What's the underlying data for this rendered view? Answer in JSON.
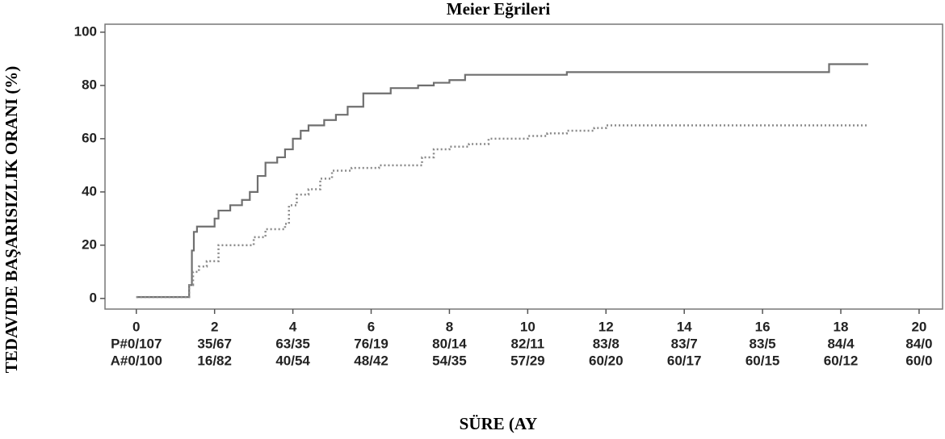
{
  "chart_data": {
    "type": "line",
    "title": "Meier Eğrileri",
    "y_label": "TEDAVIDE BAŞARISIZLIK ORANI (%)",
    "x_label": "SÜRE (AY",
    "xlim": [
      -0.8,
      20.6
    ],
    "ylim": [
      -4,
      103
    ],
    "xticks": [
      0,
      2,
      4,
      6,
      8,
      10,
      12,
      14,
      16,
      18,
      20
    ],
    "yticks": [
      0,
      20,
      40,
      60,
      80,
      100
    ],
    "series": [
      {
        "color": "#6f6f6f",
        "style": "solid",
        "x": [
          0,
          1.35,
          1.35,
          1.42,
          1.42,
          1.47,
          1.47,
          1.55,
          1.55,
          2.0,
          2.0,
          2.1,
          2.1,
          2.4,
          2.4,
          2.7,
          2.7,
          2.9,
          2.9,
          3.1,
          3.1,
          3.3,
          3.3,
          3.6,
          3.6,
          3.8,
          3.8,
          4.0,
          4.0,
          4.2,
          4.2,
          4.4,
          4.4,
          4.8,
          4.8,
          5.1,
          5.1,
          5.4,
          5.4,
          5.8,
          5.8,
          6.5,
          6.5,
          7.2,
          7.2,
          7.6,
          7.6,
          8.0,
          8.0,
          8.4,
          8.4,
          11.0,
          11.0,
          17.7,
          17.7,
          18.7
        ],
        "values": [
          0.5,
          0.5,
          5,
          5,
          18,
          18,
          25,
          25,
          27,
          27,
          30,
          30,
          33,
          33,
          35,
          35,
          37,
          37,
          40,
          40,
          46,
          46,
          51,
          51,
          53,
          53,
          56,
          56,
          60,
          60,
          63,
          63,
          65,
          65,
          67,
          67,
          69,
          69,
          72,
          72,
          77,
          77,
          79,
          79,
          80,
          80,
          81,
          81,
          82,
          82,
          84,
          84,
          85,
          85,
          88,
          88
        ]
      },
      {
        "color": "#8a8a8a",
        "style": "dotted",
        "x": [
          0,
          1.35,
          1.35,
          1.45,
          1.45,
          1.6,
          1.6,
          1.8,
          1.8,
          2.1,
          2.1,
          3.0,
          3.0,
          3.3,
          3.3,
          3.8,
          3.8,
          3.9,
          3.9,
          4.1,
          4.1,
          4.4,
          4.4,
          4.7,
          4.7,
          5.0,
          5.0,
          5.5,
          5.5,
          6.2,
          6.2,
          7.3,
          7.3,
          7.6,
          7.6,
          8.0,
          8.0,
          8.5,
          8.5,
          9.0,
          9.0,
          10.0,
          10.0,
          10.5,
          10.5,
          11.0,
          11.0,
          11.7,
          11.7,
          12.0,
          12.0,
          18.7
        ],
        "values": [
          0.5,
          0.5,
          5,
          5,
          10,
          10,
          12,
          12,
          14,
          14,
          20,
          20,
          23,
          23,
          26,
          26,
          28,
          28,
          35,
          35,
          39,
          39,
          41,
          41,
          45,
          45,
          48,
          48,
          49,
          49,
          50,
          50,
          53,
          53,
          56,
          56,
          57,
          57,
          58,
          58,
          60,
          60,
          61,
          61,
          62,
          62,
          63,
          63,
          64,
          64,
          65,
          65
        ]
      }
    ],
    "risk_table": [
      [
        "P#0/107",
        "35/67",
        "63/35",
        "76/19",
        "80/14",
        "82/11",
        "83/8",
        "83/7",
        "83/5",
        "84/4",
        "84/0"
      ],
      [
        "A#0/100",
        "16/82",
        "40/54",
        "48/42",
        "54/35",
        "57/29",
        "60/20",
        "60/17",
        "60/15",
        "60/12",
        "60/0"
      ]
    ]
  }
}
